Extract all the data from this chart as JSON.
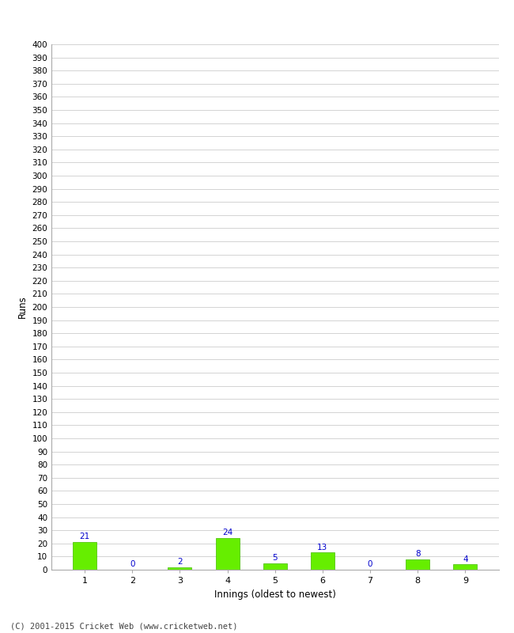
{
  "xlabel": "Innings (oldest to newest)",
  "ylabel": "Runs",
  "categories": [
    "1",
    "2",
    "3",
    "4",
    "5",
    "6",
    "7",
    "8",
    "9"
  ],
  "values": [
    21,
    0,
    2,
    24,
    5,
    13,
    0,
    8,
    4
  ],
  "bar_color": "#66ee00",
  "bar_edge_color": "#44bb00",
  "label_color": "#0000cc",
  "ylim": [
    0,
    400
  ],
  "ytick_step": 10,
  "background_color": "#ffffff",
  "grid_color": "#cccccc",
  "footer": "(C) 2001-2015 Cricket Web (www.cricketweb.net)"
}
